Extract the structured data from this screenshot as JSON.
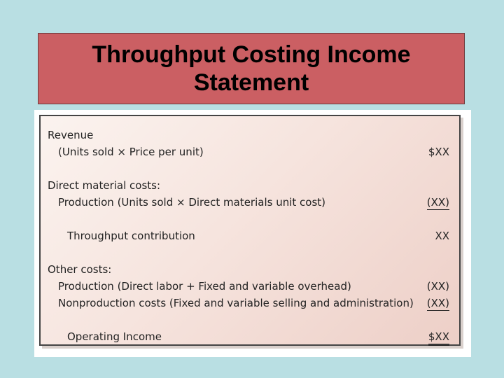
{
  "title": "Throughput Costing Income Statement",
  "statement": {
    "rows": [
      {
        "label": "Revenue",
        "amount": ""
      },
      {
        "label": "(Units sold × Price per unit)",
        "amount": "$XX"
      },
      {
        "label": "Direct material costs:",
        "amount": ""
      },
      {
        "label": "Production (Units sold × Direct materials unit cost)",
        "amount": "(XX)"
      },
      {
        "label": "Throughput contribution",
        "amount": "XX"
      },
      {
        "label": "Other costs:",
        "amount": ""
      },
      {
        "label": "Production (Direct labor + Fixed and variable overhead)",
        "amount": "(XX)"
      },
      {
        "label": "Nonproduction costs (Fixed and variable selling and administration)",
        "amount": "(XX)"
      },
      {
        "label": "Operating Income",
        "amount": "$XX"
      }
    ]
  }
}
